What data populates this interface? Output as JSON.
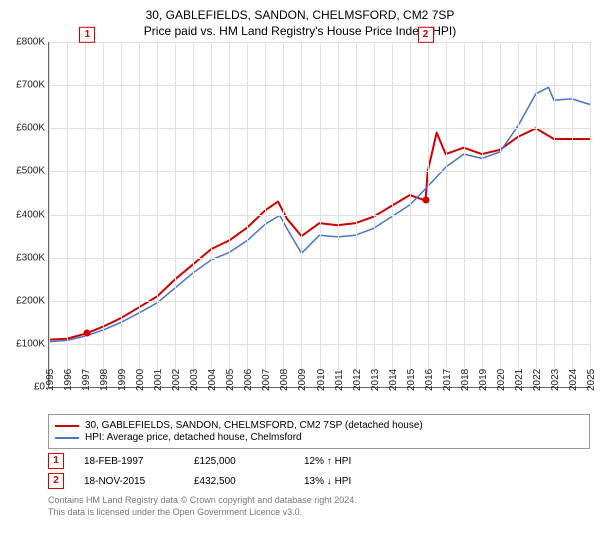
{
  "title": {
    "line1": "30, GABLEFIELDS, SANDON, CHELMSFORD, CM2 7SP",
    "line2": "Price paid vs. HM Land Registry's House Price Index (HPI)",
    "fontsize": 12,
    "color": "#000000"
  },
  "chart": {
    "type": "line",
    "background_color": "#ffffff",
    "grid_color": "#e0e0e0",
    "axis_color": "#666666",
    "xlim": [
      1995,
      2025
    ],
    "ylim": [
      0,
      800000
    ],
    "ytick_step": 100000,
    "yticks": [
      "£0",
      "£100K",
      "£200K",
      "£300K",
      "£400K",
      "£500K",
      "£600K",
      "£700K",
      "£800K"
    ],
    "xticks": [
      "1995",
      "1996",
      "1997",
      "1998",
      "1999",
      "2000",
      "2001",
      "2002",
      "2003",
      "2004",
      "2005",
      "2006",
      "2007",
      "2008",
      "2009",
      "2010",
      "2011",
      "2012",
      "2013",
      "2014",
      "2015",
      "2016",
      "2017",
      "2018",
      "2019",
      "2020",
      "2021",
      "2022",
      "2023",
      "2024",
      "2025"
    ],
    "label_fontsize": 10,
    "xlabel_rotation": -90,
    "series": [
      {
        "name": "30, GABLEFIELDS, SANDON, CHELMSFORD, CM2 7SP (detached house)",
        "color": "#d00000",
        "line_width": 2,
        "data": [
          [
            1995,
            110000
          ],
          [
            1996,
            112000
          ],
          [
            1997.13,
            125000
          ],
          [
            1998,
            140000
          ],
          [
            1999,
            160000
          ],
          [
            2000,
            185000
          ],
          [
            2001,
            210000
          ],
          [
            2002,
            250000
          ],
          [
            2003,
            285000
          ],
          [
            2004,
            320000
          ],
          [
            2005,
            340000
          ],
          [
            2006,
            370000
          ],
          [
            2007,
            410000
          ],
          [
            2007.7,
            430000
          ],
          [
            2008.2,
            390000
          ],
          [
            2009,
            350000
          ],
          [
            2010,
            380000
          ],
          [
            2011,
            375000
          ],
          [
            2012,
            380000
          ],
          [
            2013,
            395000
          ],
          [
            2014,
            420000
          ],
          [
            2015,
            445000
          ],
          [
            2015.88,
            432500
          ],
          [
            2016,
            500000
          ],
          [
            2016.5,
            590000
          ],
          [
            2017,
            540000
          ],
          [
            2018,
            555000
          ],
          [
            2019,
            540000
          ],
          [
            2020,
            550000
          ],
          [
            2021,
            580000
          ],
          [
            2022,
            600000
          ],
          [
            2023,
            575000
          ],
          [
            2024,
            575000
          ],
          [
            2025,
            575000
          ]
        ]
      },
      {
        "name": "HPI: Average price, detached house, Chelmsford",
        "color": "#4a74c9",
        "line_width": 1.5,
        "data": [
          [
            1995,
            105000
          ],
          [
            1996,
            108000
          ],
          [
            1997,
            118000
          ],
          [
            1998,
            132000
          ],
          [
            1999,
            150000
          ],
          [
            2000,
            172000
          ],
          [
            2001,
            195000
          ],
          [
            2002,
            230000
          ],
          [
            2003,
            265000
          ],
          [
            2004,
            295000
          ],
          [
            2005,
            312000
          ],
          [
            2006,
            340000
          ],
          [
            2007,
            378000
          ],
          [
            2007.8,
            398000
          ],
          [
            2008.3,
            360000
          ],
          [
            2009,
            310000
          ],
          [
            2010,
            352000
          ],
          [
            2011,
            348000
          ],
          [
            2012,
            352000
          ],
          [
            2013,
            368000
          ],
          [
            2014,
            395000
          ],
          [
            2015,
            422000
          ],
          [
            2016,
            465000
          ],
          [
            2017,
            510000
          ],
          [
            2018,
            540000
          ],
          [
            2019,
            530000
          ],
          [
            2020,
            545000
          ],
          [
            2021,
            605000
          ],
          [
            2022,
            680000
          ],
          [
            2022.7,
            695000
          ],
          [
            2023,
            665000
          ],
          [
            2024,
            668000
          ],
          [
            2025,
            655000
          ]
        ]
      }
    ],
    "markers": [
      {
        "index": "1",
        "x": 1997.13,
        "y": 125000,
        "color": "#d00000"
      },
      {
        "index": "2",
        "x": 2015.88,
        "y": 432500,
        "color": "#d00000"
      }
    ]
  },
  "legend": {
    "border_color": "#999999",
    "fontsize": 10,
    "items": [
      {
        "color": "#d00000",
        "label": "30, GABLEFIELDS, SANDON, CHELMSFORD, CM2 7SP (detached house)"
      },
      {
        "color": "#4a74c9",
        "label": "HPI: Average price, detached house, Chelmsford"
      }
    ]
  },
  "transactions": [
    {
      "index": "1",
      "date": "18-FEB-1997",
      "price": "£125,000",
      "delta": "12% ↑ HPI"
    },
    {
      "index": "2",
      "date": "18-NOV-2015",
      "price": "£432,500",
      "delta": "13% ↓ HPI"
    }
  ],
  "footnote": {
    "line1": "Contains HM Land Registry data © Crown copyright and database right 2024.",
    "line2": "This data is licensed under the Open Government Licence v3.0.",
    "color": "#777777",
    "fontsize": 9
  }
}
